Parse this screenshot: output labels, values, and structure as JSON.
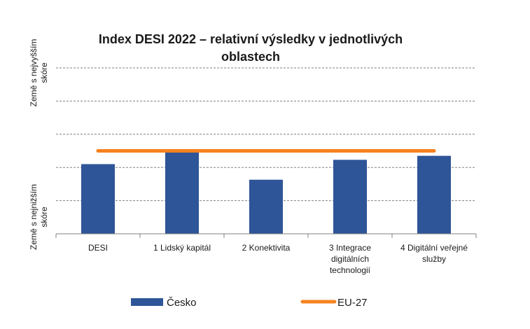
{
  "chart_data": {
    "type": "bar",
    "title": "Index DESI 2022 – relativní výsledky v jednotlivých oblastech",
    "title_lines": [
      "Index DESI 2022 – relativní výsledky v jednotlivých",
      "oblastech"
    ],
    "ylabel_top": [
      "Země s nejvyšším",
      "skóre"
    ],
    "ylabel_bottom": [
      "Země s nejnižším",
      "skóre"
    ],
    "categories": [
      "DESI",
      "1 Lidský kapitál",
      "2 Konektivita",
      "3 Integrace digitálních technologií",
      "4 Digitální veřejné služby"
    ],
    "category_lines": [
      [
        "DESI"
      ],
      [
        "1 Lidský kapitál"
      ],
      [
        "2 Konektivita"
      ],
      [
        "3 Integrace",
        "digitálních",
        "technologií"
      ],
      [
        "4 Digitální veřejné",
        "služby"
      ]
    ],
    "ylim": [
      0,
      5
    ],
    "series": [
      {
        "name": "Česko",
        "type": "bar",
        "color": "#2e5597",
        "values": [
          2.1,
          2.47,
          1.63,
          2.23,
          2.35
        ]
      },
      {
        "name": "EU-27",
        "type": "line",
        "color": "#f58220",
        "values": [
          2.5,
          2.5,
          2.5,
          2.5,
          2.5
        ]
      }
    ],
    "grid": true,
    "legend": "bottom"
  }
}
